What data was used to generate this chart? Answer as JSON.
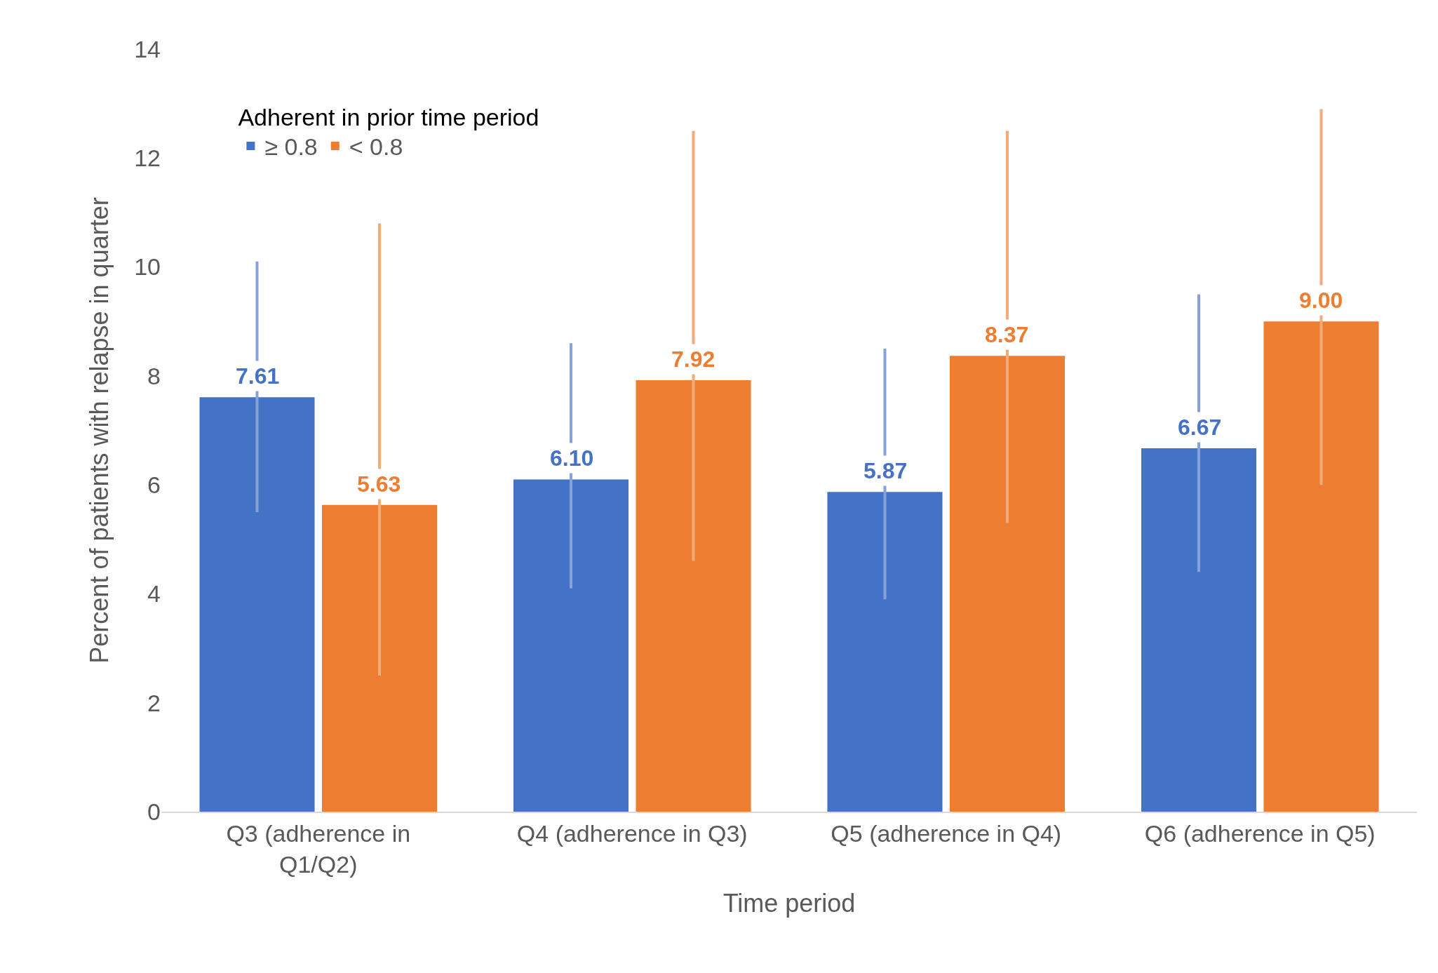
{
  "chart_data": {
    "type": "bar",
    "xlabel": "Time period",
    "ylabel": "Percent of patients with relapse in quarter",
    "legend_title": "Adherent in prior time period",
    "categories": [
      "Q3 (adherence in Q1/Q2)",
      "Q4 (adherence in Q3)",
      "Q5 (adherence in Q4)",
      "Q6 (adherence in Q5)"
    ],
    "series": [
      {
        "name": "≥ 0.8",
        "color": "#4472c4",
        "values": [
          7.61,
          6.1,
          5.87,
          6.67
        ],
        "value_labels": [
          "7.61",
          "6.10",
          "5.87",
          "6.67"
        ],
        "errors": [
          [
            5.5,
            10.1
          ],
          [
            4.1,
            8.6
          ],
          [
            3.9,
            8.5
          ],
          [
            4.4,
            9.5
          ]
        ]
      },
      {
        "name": "< 0.8",
        "color": "#ed7d31",
        "values": [
          5.63,
          7.92,
          8.37,
          9.0
        ],
        "value_labels": [
          "5.63",
          "7.92",
          "8.37",
          "9.00"
        ],
        "errors": [
          [
            2.5,
            10.8
          ],
          [
            4.6,
            12.5
          ],
          [
            5.3,
            12.5
          ],
          [
            6.0,
            12.9
          ]
        ]
      }
    ],
    "ylim": [
      0,
      14
    ],
    "yticks": [
      0,
      2,
      4,
      6,
      8,
      10,
      12,
      14
    ],
    "grid": false,
    "legend": "top left"
  }
}
